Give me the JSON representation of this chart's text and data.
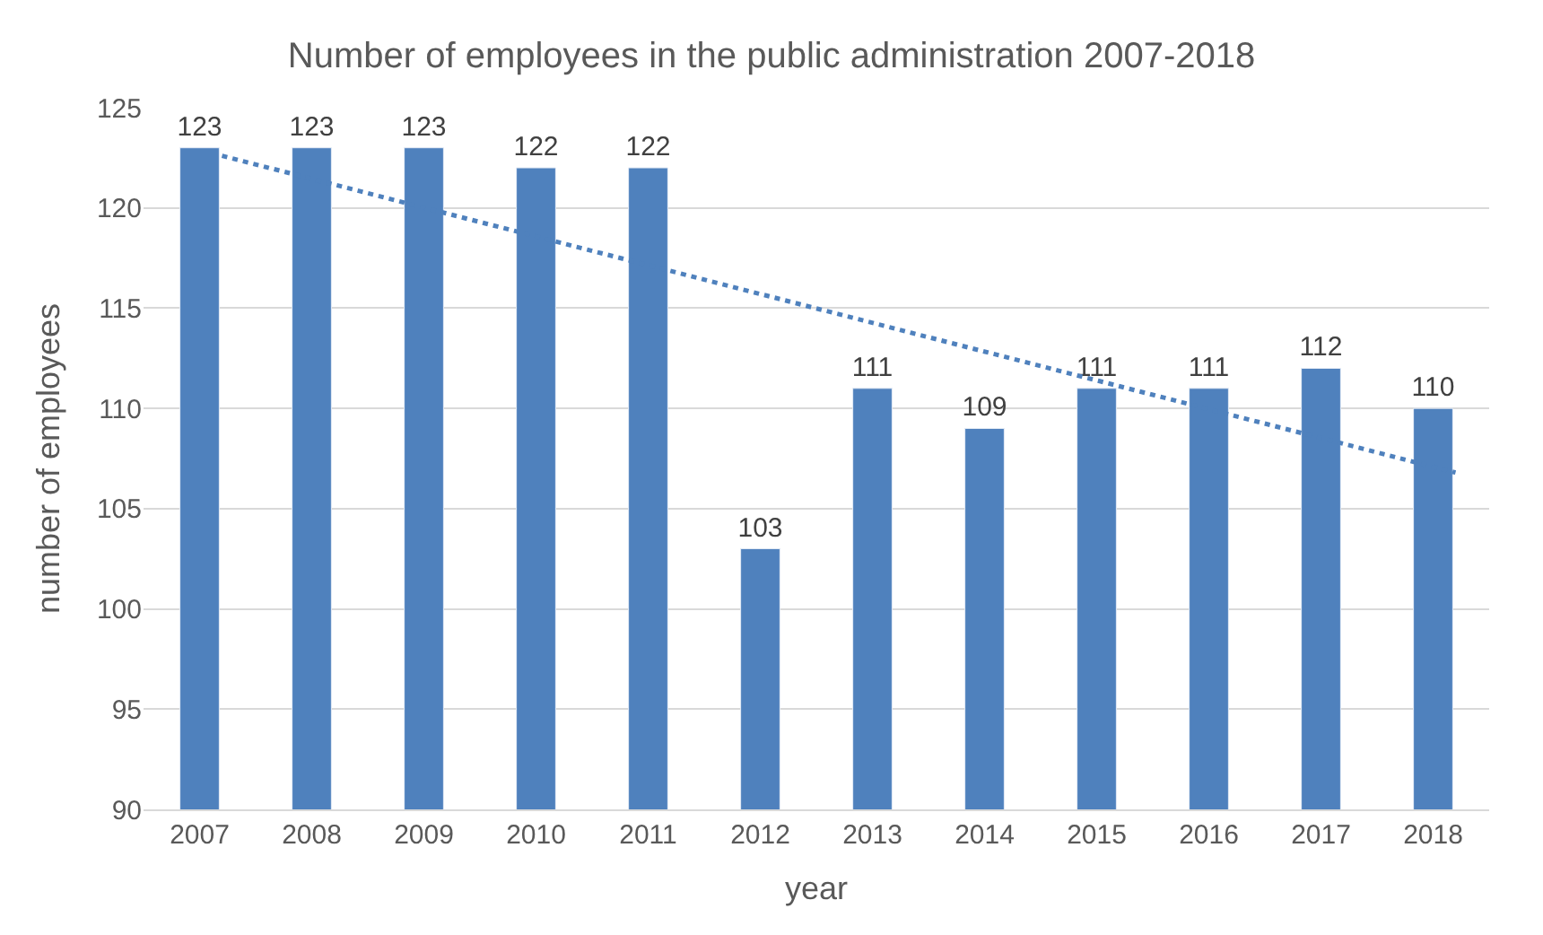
{
  "chart_data": {
    "type": "bar",
    "title": "Number of employees in the public administration 2007-2018",
    "xlabel": "year",
    "ylabel": "number of employees",
    "x": [
      2007,
      2008,
      2009,
      2010,
      2011,
      2012,
      2013,
      2014,
      2015,
      2016,
      2017,
      2018
    ],
    "xlim": [
      2006.5,
      2018.5
    ],
    "xticks": [
      2007,
      2008,
      2009,
      2010,
      2011,
      2012,
      2013,
      2014,
      2015,
      2016,
      2017,
      2018
    ],
    "series": [
      {
        "color": "#4f81bd",
        "values": [
          123,
          123,
          123,
          122,
          122,
          103,
          111,
          109,
          111,
          111,
          112,
          110
        ],
        "value_labels": [
          "123",
          "123",
          "123",
          "122",
          "122",
          "103",
          "111",
          "109",
          "111",
          "111",
          "112",
          "110"
        ]
      },
      {
        "type": "line",
        "color": "#4f81bd",
        "x": [
          2007.2,
          2018.2
        ],
        "values": [
          122.6,
          106.8
        ],
        "line_style": "dotted",
        "marker": "none"
      }
    ],
    "ylim": [
      90,
      125
    ],
    "yticks": [
      90,
      95,
      100,
      105,
      110,
      115,
      120,
      125
    ],
    "grid": "y"
  }
}
